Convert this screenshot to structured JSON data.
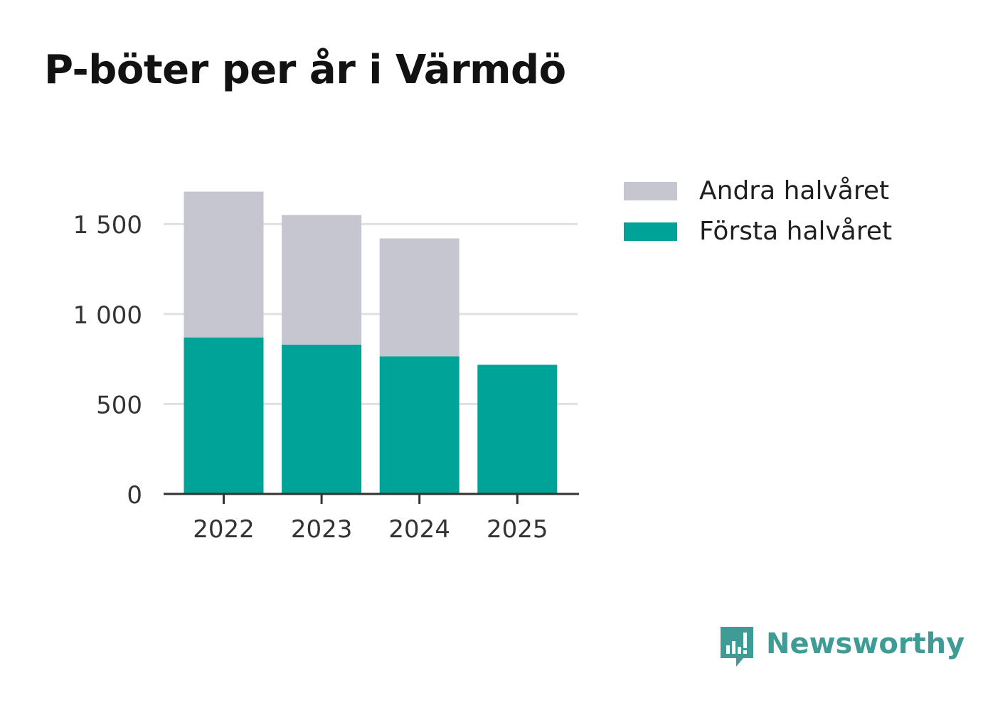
{
  "title": "P-böter per år i Värmdö",
  "colors": {
    "second_half": "#c6c6d1",
    "first_half": "#00a398",
    "grid": "#e0e0e0",
    "axis": "#333333",
    "text": "#333333",
    "brand": "#3e9b96"
  },
  "legend": {
    "items": [
      {
        "label": "Andra halvåret",
        "color": "#c6c6d1"
      },
      {
        "label": "Första halvåret",
        "color": "#00a398"
      }
    ]
  },
  "brand": {
    "name": "Newsworthy",
    "icon": "newsworthy-logo-icon"
  },
  "chart_data": {
    "type": "bar",
    "stacked": true,
    "title": "P-böter per år i Värmdö",
    "xlabel": "",
    "ylabel": "",
    "categories": [
      "2022",
      "2023",
      "2024",
      "2025"
    ],
    "series": [
      {
        "name": "Första halvåret",
        "values": [
          870,
          830,
          765,
          718
        ]
      },
      {
        "name": "Andra halvåret",
        "values": [
          810,
          720,
          655,
          0
        ]
      }
    ],
    "yticks": [
      0,
      500,
      1000,
      1500
    ],
    "ytick_labels": [
      "0",
      "500",
      "1 000",
      "1 500"
    ],
    "ylim": [
      0,
      1680
    ],
    "grid": true,
    "legend_position": "top-right"
  }
}
